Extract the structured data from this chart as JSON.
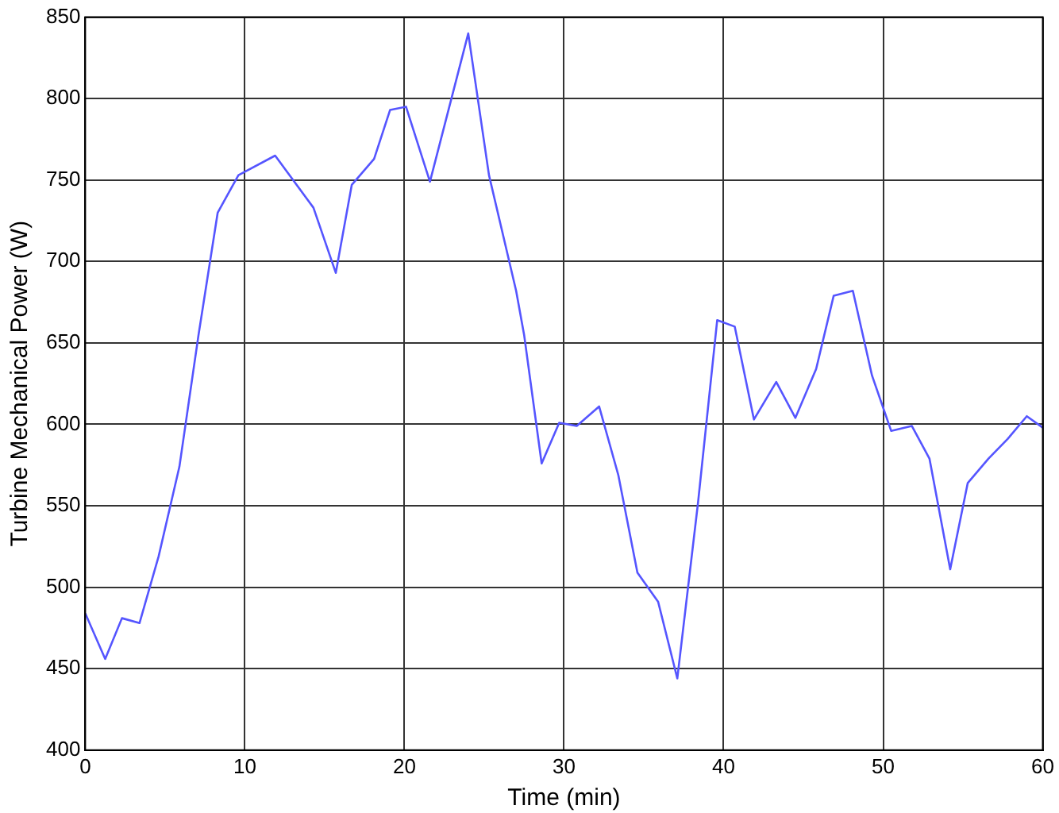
{
  "chart_data": {
    "type": "line",
    "xlabel": "Time (min)",
    "ylabel": "Turbine Mechanical Power (W)",
    "x": [
      0,
      1.25,
      2.3,
      3.4,
      4.6,
      5.9,
      7.1,
      8.3,
      9.6,
      11.9,
      14.3,
      15.7,
      16.7,
      18.1,
      19.1,
      20.1,
      21.6,
      24,
      25.3,
      27,
      27.5,
      28.6,
      29.7,
      30.8,
      32.2,
      33.4,
      34.6,
      35.9,
      37.1,
      38.4,
      39.6,
      40.7,
      41.9,
      43.3,
      44.5,
      45.8,
      46.9,
      48.1,
      49.3,
      50.5,
      51.8,
      52.9,
      54.2,
      55.3,
      56.6,
      57.8,
      59,
      60
    ],
    "series": [
      {
        "color": "#5555ff",
        "values": [
          484,
          456,
          481,
          478,
          519,
          574,
          655,
          730,
          753,
          765,
          733,
          693,
          747,
          763,
          793,
          795,
          749,
          840,
          753,
          682,
          655,
          576,
          601,
          599,
          611,
          569,
          509,
          491,
          444,
          552,
          664,
          660,
          603,
          626,
          604,
          634,
          679,
          682,
          630,
          596,
          599,
          579,
          511,
          564,
          579,
          591,
          605,
          598
        ]
      }
    ],
    "xlim": [
      0,
      60
    ],
    "xticks": [
      0,
      10,
      20,
      30,
      40,
      50,
      60
    ],
    "ylim": [
      400,
      850
    ],
    "yticks": [
      400,
      450,
      500,
      550,
      600,
      650,
      700,
      750,
      800,
      850
    ],
    "grid": true,
    "legend": false,
    "marker": "none",
    "line_style": "solid"
  }
}
